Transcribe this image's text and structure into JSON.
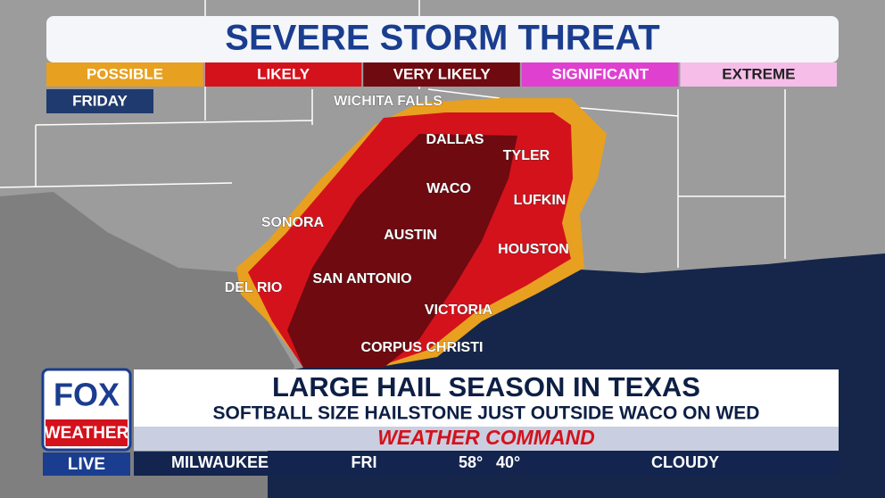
{
  "header": {
    "title": "SEVERE STORM THREAT",
    "levels": [
      "POSSIBLE",
      "LIKELY",
      "VERY LIKELY",
      "SIGNIFICANT",
      "EXTREME"
    ],
    "day": "FRIDAY"
  },
  "cities": [
    "WICHITA FALLS",
    "DALLAS",
    "TYLER",
    "WACO",
    "LUFKIN",
    "SONORA",
    "AUSTIN",
    "HOUSTON",
    "DEL RIO",
    "SAN ANTONIO",
    "VICTORIA",
    "CORPUS CHRISTI"
  ],
  "logo": {
    "brand": "FOX",
    "sub": "WEATHER",
    "status": "LIVE"
  },
  "lower_third": {
    "headline": "LARGE HAIL SEASON IN TEXAS",
    "subheadline": "SOFTBALL SIZE HAILSTONE JUST OUTSIDE WACO ON WED",
    "banner": "WEATHER COMMAND"
  },
  "ticker": {
    "city": "MILWAUKEE",
    "day": "FRI",
    "high": "58°",
    "low": "40°",
    "condition": "CLOUDY"
  }
}
